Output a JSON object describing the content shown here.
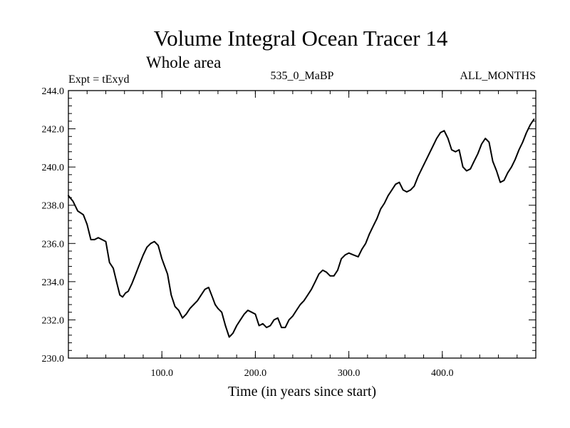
{
  "chart_data": {
    "type": "line",
    "title": "Volume Integral Ocean Tracer 14",
    "subtitle": "Whole area",
    "left_label": "Expt = tExyd",
    "center_label": "535_0_MaBP",
    "right_label": "ALL_MONTHS",
    "xlabel": "Time (in years since start)",
    "ylabel": "",
    "xlim": [
      0,
      500
    ],
    "ylim": [
      230,
      244
    ],
    "x_ticks": [
      100,
      200,
      300,
      400
    ],
    "x_tick_labels": [
      "100.0",
      "200.0",
      "300.0",
      "400.0"
    ],
    "y_ticks": [
      230,
      232,
      234,
      236,
      238,
      240,
      242,
      244
    ],
    "y_tick_labels": [
      "230.0",
      "232.0",
      "234.0",
      "236.0",
      "238.0",
      "240.0",
      "242.0",
      "244.0"
    ],
    "series": [
      {
        "x": [
          0,
          5,
          10,
          13,
          16,
          20,
          24,
          28,
          32,
          36,
          40,
          44,
          48,
          52,
          55,
          58,
          61,
          64,
          68,
          72,
          76,
          80,
          84,
          88,
          92,
          96,
          100,
          103,
          106,
          110,
          114,
          118,
          122,
          126,
          130,
          134,
          138,
          142,
          146,
          150,
          154,
          157,
          160,
          164,
          168,
          172,
          176,
          180,
          184,
          188,
          192,
          196,
          200,
          204,
          208,
          212,
          216,
          220,
          224,
          228,
          232,
          236,
          240,
          244,
          248,
          252,
          256,
          260,
          264,
          268,
          272,
          276,
          280,
          284,
          288,
          292,
          296,
          300,
          305,
          310,
          314,
          318,
          322,
          326,
          330,
          334,
          338,
          342,
          346,
          350,
          354,
          358,
          362,
          366,
          370,
          374,
          378,
          382,
          386,
          390,
          394,
          398,
          402,
          406,
          410,
          414,
          418,
          422,
          426,
          430,
          434,
          438,
          442,
          446,
          450,
          454,
          458,
          462,
          466,
          470,
          474,
          478,
          482,
          486,
          490,
          494,
          498
        ],
        "y": [
          238.5,
          238.2,
          237.7,
          237.6,
          237.5,
          237.0,
          236.2,
          236.2,
          236.3,
          236.2,
          236.1,
          235.0,
          234.7,
          233.9,
          233.3,
          233.2,
          233.4,
          233.5,
          233.9,
          234.4,
          234.9,
          235.4,
          235.8,
          236.0,
          236.1,
          235.9,
          235.2,
          234.8,
          234.4,
          233.3,
          232.7,
          232.5,
          232.1,
          232.3,
          232.6,
          232.8,
          233.0,
          233.3,
          233.6,
          233.7,
          233.2,
          232.8,
          232.6,
          232.4,
          231.7,
          231.1,
          231.3,
          231.7,
          232.0,
          232.3,
          232.5,
          232.4,
          232.3,
          231.7,
          231.8,
          231.6,
          231.7,
          232.0,
          232.1,
          231.6,
          231.6,
          232.0,
          232.2,
          232.5,
          232.8,
          233.0,
          233.3,
          233.6,
          234.0,
          234.4,
          234.6,
          234.5,
          234.3,
          234.3,
          234.6,
          235.2,
          235.4,
          235.5,
          235.4,
          235.3,
          235.7,
          236.0,
          236.5,
          236.9,
          237.3,
          237.8,
          238.1,
          238.5,
          238.8,
          239.1,
          239.2,
          238.8,
          238.7,
          238.8,
          239.0,
          239.5,
          239.9,
          240.3,
          240.7,
          241.1,
          241.5,
          241.8,
          241.9,
          241.5,
          240.9,
          240.8,
          240.9,
          240.0,
          239.8,
          239.9,
          240.3,
          240.7,
          241.2,
          241.5,
          241.3,
          240.3,
          239.8,
          239.2,
          239.3,
          239.7,
          240.0,
          240.4,
          240.9,
          241.3,
          241.8,
          242.2,
          242.5
        ]
      }
    ]
  }
}
